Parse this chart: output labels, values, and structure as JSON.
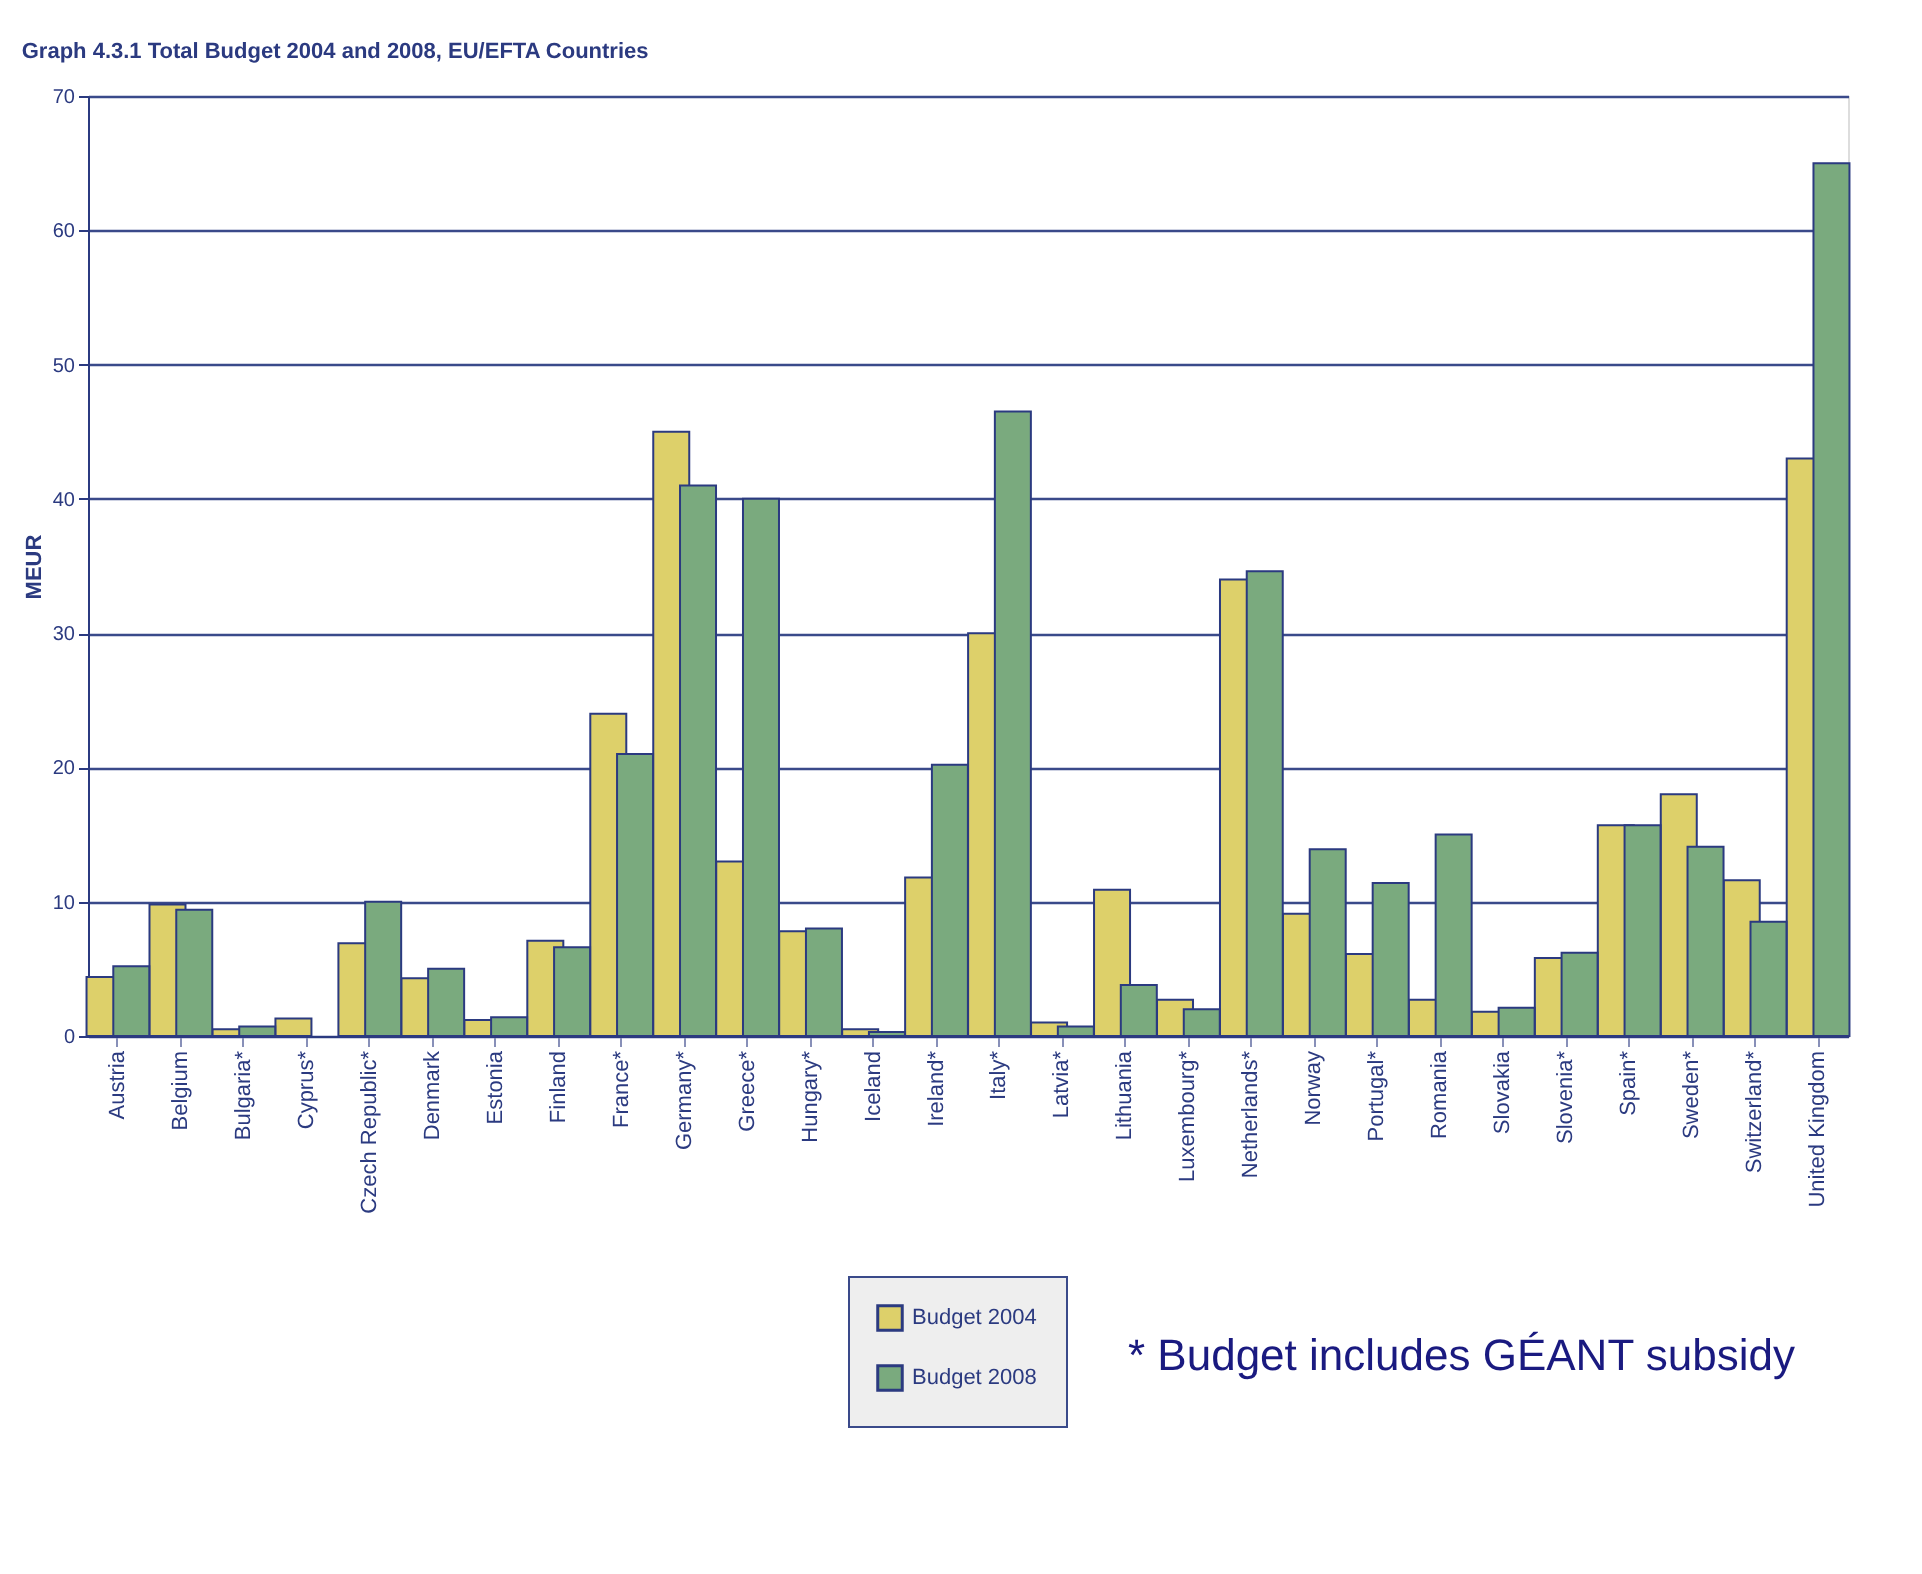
{
  "chart_data": {
    "type": "bar",
    "title": "Graph 4.3.1 Total Budget 2004 and 2008, EU/EFTA Countries",
    "ylabel": "MEUR",
    "categories": [
      "Austria",
      "Belgium",
      "Bulgaria*",
      "Cyprus*",
      "Czech Republic*",
      "Denmark",
      "Estonia",
      "Finland",
      "France*",
      "Germany*",
      "Greece*",
      "Hungary*",
      "Iceland",
      "Ireland*",
      "Italy*",
      "Latvia*",
      "Lithuania",
      "Luxembourg*",
      "Netherlands*",
      "Norway",
      "Portugal*",
      "Romania",
      "Slovakia",
      "Slovenia*",
      "Spain*",
      "Sweden*",
      "Switzerland*",
      "United Kingdom"
    ],
    "series": [
      {
        "name": "Budget 2004",
        "color": "#ddd06a",
        "values": [
          4.4,
          9.8,
          0.5,
          1.3,
          6.9,
          4.3,
          1.2,
          7.1,
          24,
          45,
          13,
          7.8,
          0.5,
          11.8,
          30,
          1.0,
          10.9,
          2.7,
          34,
          9.1,
          6.1,
          2.7,
          1.8,
          5.8,
          15.7,
          18,
          11.6,
          43
        ]
      },
      {
        "name": "Budget 2008",
        "color": "#7aaa7e",
        "values": [
          5.2,
          9.4,
          0.7,
          null,
          10,
          5,
          1.4,
          6.6,
          21,
          41,
          40,
          8,
          0.3,
          20.2,
          46.5,
          0.7,
          3.8,
          2.0,
          34.6,
          13.9,
          11.4,
          15,
          2.1,
          6.2,
          15.7,
          14.1,
          8.5,
          65
        ]
      }
    ],
    "ylim": [
      0,
      70
    ],
    "yticks": [
      0,
      10,
      20,
      30,
      40,
      50,
      60,
      70
    ],
    "grid": "y",
    "legend": "bottom",
    "annotations": [
      "* Budget includes GÉANT subsidy"
    ]
  }
}
